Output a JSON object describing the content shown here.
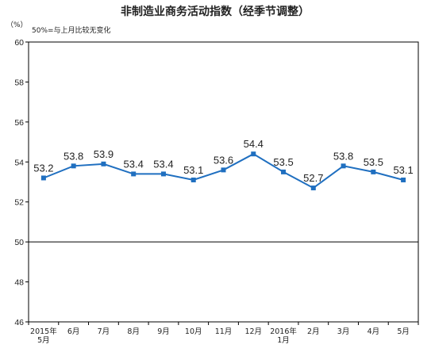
{
  "chart_data": {
    "type": "line",
    "title": "非制造业商务活动指数（经季节调整）",
    "yunit": "（%）",
    "reference_note": "50%=与上月比较无变化",
    "reference_value": 50,
    "ylim": [
      46,
      60
    ],
    "yticks": [
      46,
      48,
      50,
      52,
      54,
      56,
      58,
      60
    ],
    "categories": [
      [
        "2015年",
        "5月"
      ],
      [
        "6月"
      ],
      [
        "7月"
      ],
      [
        "8月"
      ],
      [
        "9月"
      ],
      [
        "10月"
      ],
      [
        "11月"
      ],
      [
        "12月"
      ],
      [
        "2016年",
        "1月"
      ],
      [
        "2月"
      ],
      [
        "3月"
      ],
      [
        "4月"
      ],
      [
        "5月"
      ]
    ],
    "values": [
      53.2,
      53.8,
      53.9,
      53.4,
      53.4,
      53.1,
      53.6,
      54.4,
      53.5,
      52.7,
      53.8,
      53.5,
      53.1
    ],
    "grid": false,
    "colors": {
      "line": "#1f6fc0",
      "axis": "#000000"
    }
  }
}
